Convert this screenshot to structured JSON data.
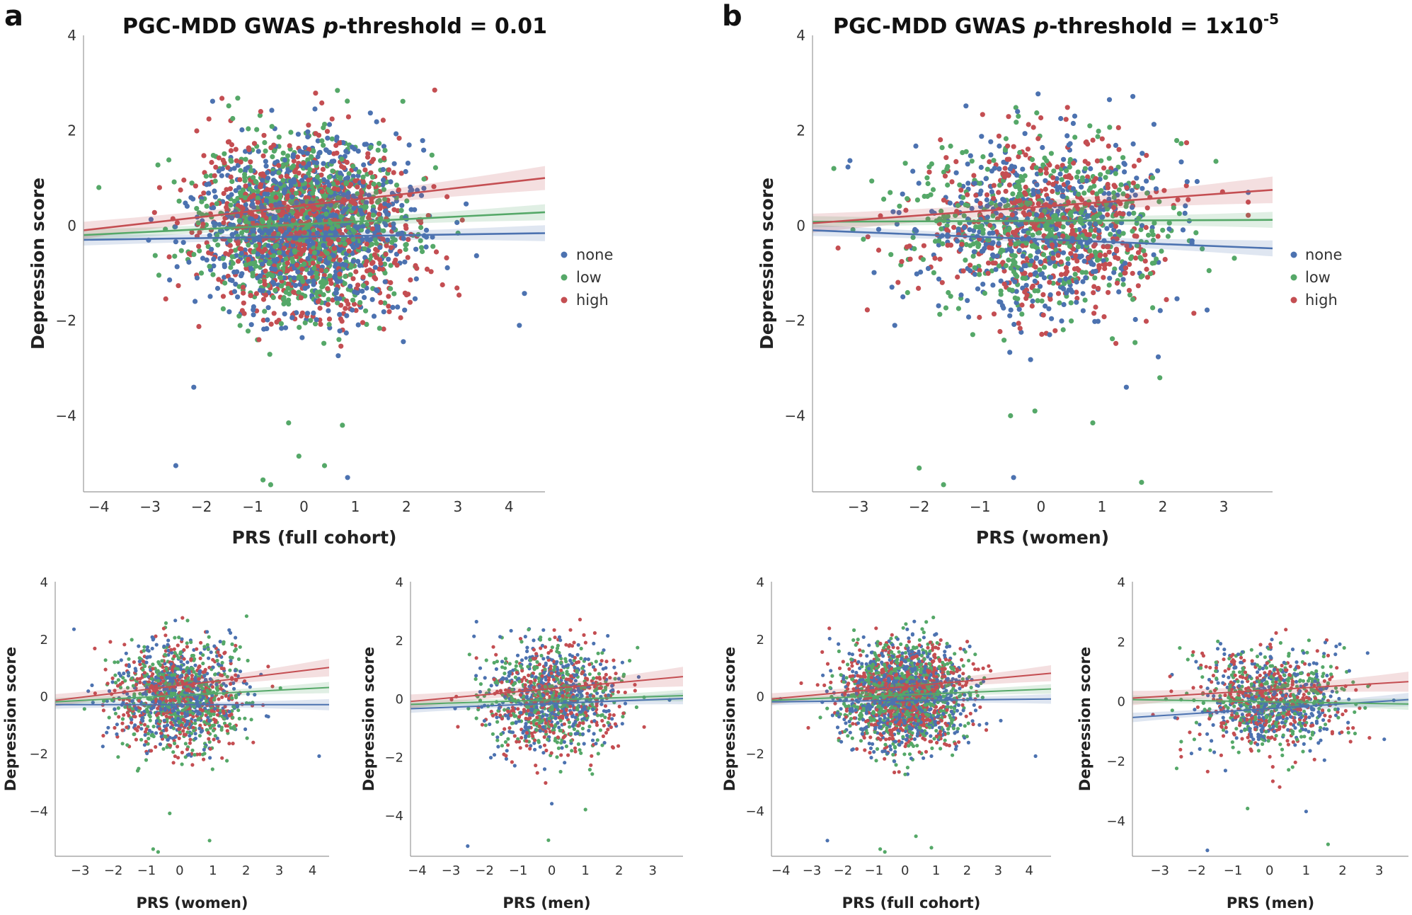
{
  "colors": {
    "none": "#4c72b0",
    "low": "#55a868",
    "high": "#c44e52"
  },
  "panel_labels": {
    "a": "a",
    "b": "b"
  },
  "titles": {
    "a": {
      "prefix": "PGC-MDD GWAS ",
      "italic": "p",
      "suffix": "-threshold = 0.01"
    },
    "b": {
      "prefix": "PGC-MDD GWAS ",
      "italic": "p",
      "suffix": "-threshold = 1x10",
      "sup": "-5"
    }
  },
  "legend": {
    "labels": [
      "none",
      "low",
      "high"
    ]
  },
  "chart_data": [
    {
      "id": "a_main",
      "type": "scatter",
      "title": "PGC-MDD GWAS p-threshold = 0.01",
      "xlabel": "PRS (full cohort)",
      "ylabel": "Depression score",
      "xlim": [
        -4.3,
        4.7
      ],
      "ylim": [
        -5.6,
        4.0
      ],
      "xticks": [
        "−4",
        "−3",
        "−2",
        "−1",
        "0",
        "1",
        "2",
        "3",
        "4"
      ],
      "xtick_values": [
        -4,
        -3,
        -2,
        -1,
        0,
        1,
        2,
        3,
        4
      ],
      "yticks": [
        "4",
        "2",
        "0",
        "−2",
        "−4"
      ],
      "ytick_values": [
        4,
        2,
        0,
        -2,
        -4
      ],
      "legend": [
        "none",
        "low",
        "high"
      ],
      "series": [
        {
          "name": "none",
          "line": [
            [
              -4.3,
              -0.3
            ],
            [
              4.7,
              -0.16
            ]
          ],
          "ci": 0.12
        },
        {
          "name": "low",
          "line": [
            [
              -4.3,
              -0.2
            ],
            [
              4.7,
              0.28
            ]
          ],
          "ci": 0.12
        },
        {
          "name": "high",
          "line": [
            [
              -4.3,
              -0.1
            ],
            [
              4.7,
              1.0
            ]
          ],
          "ci": 0.18
        }
      ],
      "point_cloud": {
        "n": 2600,
        "x_mean": 0.0,
        "x_sd": 1.0,
        "y_sd": 0.9,
        "seed": 11
      },
      "outliers": [
        {
          "series": "none",
          "x": -2.5,
          "y": -5.05
        },
        {
          "series": "none",
          "x": 0.85,
          "y": -5.3
        },
        {
          "series": "none",
          "x": 4.2,
          "y": -2.1
        },
        {
          "series": "low",
          "x": -0.8,
          "y": -5.35
        },
        {
          "series": "low",
          "x": -0.65,
          "y": -5.45
        },
        {
          "series": "low",
          "x": -0.1,
          "y": -4.85
        },
        {
          "series": "low",
          "x": 0.4,
          "y": -5.05
        },
        {
          "series": "low",
          "x": -0.3,
          "y": -4.15
        },
        {
          "series": "low",
          "x": 0.75,
          "y": -4.2
        },
        {
          "series": "none",
          "x": -2.15,
          "y": -3.4
        },
        {
          "series": "low",
          "x": -4.0,
          "y": 0.8
        },
        {
          "series": "high",
          "x": 2.55,
          "y": 2.85
        }
      ]
    },
    {
      "id": "b_main",
      "type": "scatter",
      "title": "PGC-MDD GWAS p-threshold = 1x10-5",
      "xlabel": "PRS (women)",
      "ylabel": "Depression score",
      "xlim": [
        -3.75,
        3.8
      ],
      "ylim": [
        -5.6,
        4.0
      ],
      "xticks": [
        "−3",
        "−2",
        "−1",
        "0",
        "1",
        "2",
        "3"
      ],
      "xtick_values": [
        -3,
        -2,
        -1,
        0,
        1,
        2,
        3
      ],
      "yticks": [
        "4",
        "2",
        "0",
        "−2",
        "−4"
      ],
      "ytick_values": [
        4,
        2,
        0,
        -2,
        -4
      ],
      "legend": [
        "none",
        "low",
        "high"
      ],
      "series": [
        {
          "name": "none",
          "line": [
            [
              -3.75,
              -0.1
            ],
            [
              3.8,
              -0.48
            ]
          ],
          "ci": 0.12
        },
        {
          "name": "low",
          "line": [
            [
              -3.75,
              0.08
            ],
            [
              3.8,
              0.12
            ]
          ],
          "ci": 0.12
        },
        {
          "name": "high",
          "line": [
            [
              -3.75,
              0.05
            ],
            [
              3.8,
              0.75
            ]
          ],
          "ci": 0.2
        }
      ],
      "point_cloud": {
        "n": 1500,
        "x_mean": 0.0,
        "x_sd": 1.05,
        "y_sd": 0.9,
        "seed": 23
      },
      "outliers": [
        {
          "series": "low",
          "x": -2.0,
          "y": -5.1
        },
        {
          "series": "low",
          "x": -1.6,
          "y": -5.45
        },
        {
          "series": "none",
          "x": -0.45,
          "y": -5.3
        },
        {
          "series": "low",
          "x": 1.65,
          "y": -5.4
        },
        {
          "series": "low",
          "x": -0.5,
          "y": -4.0
        },
        {
          "series": "low",
          "x": -0.1,
          "y": -3.9
        },
        {
          "series": "low",
          "x": 0.85,
          "y": -4.15
        },
        {
          "series": "none",
          "x": 1.4,
          "y": -3.4
        },
        {
          "series": "low",
          "x": -3.4,
          "y": 1.2
        },
        {
          "series": "low",
          "x": 1.95,
          "y": -3.2
        },
        {
          "series": "none",
          "x": -2.4,
          "y": -2.1
        }
      ]
    },
    {
      "id": "a_women",
      "type": "scatter",
      "xlabel": "PRS (women)",
      "ylabel": "Depression score",
      "xlim": [
        -3.75,
        4.5
      ],
      "ylim": [
        -5.6,
        4.0
      ],
      "xticks": [
        "−3",
        "−2",
        "−1",
        "0",
        "1",
        "2",
        "3",
        "4"
      ],
      "xtick_values": [
        -3,
        -2,
        -1,
        0,
        1,
        2,
        3,
        4
      ],
      "yticks": [
        "4",
        "2",
        "0",
        "−2",
        "−4"
      ],
      "ytick_values": [
        4,
        2,
        0,
        -2,
        -4
      ],
      "series": [
        {
          "name": "none",
          "line": [
            [
              -3.75,
              -0.3
            ],
            [
              4.5,
              -0.3
            ]
          ],
          "ci": 0.14
        },
        {
          "name": "low",
          "line": [
            [
              -3.75,
              -0.2
            ],
            [
              4.5,
              0.3
            ]
          ],
          "ci": 0.14
        },
        {
          "name": "high",
          "line": [
            [
              -3.75,
              -0.15
            ],
            [
              4.5,
              1.0
            ]
          ],
          "ci": 0.22
        }
      ],
      "point_cloud": {
        "n": 1400,
        "x_mean": 0.0,
        "x_sd": 0.95,
        "y_sd": 0.9,
        "seed": 31
      },
      "outliers": [
        {
          "series": "low",
          "x": -0.8,
          "y": -5.35
        },
        {
          "series": "low",
          "x": -0.65,
          "y": -5.45
        },
        {
          "series": "low",
          "x": 0.9,
          "y": -5.05
        },
        {
          "series": "none",
          "x": 4.2,
          "y": -2.1
        },
        {
          "series": "low",
          "x": -0.3,
          "y": -4.1
        }
      ]
    },
    {
      "id": "a_men",
      "type": "scatter",
      "xlabel": "PRS (men)",
      "ylabel": "Depression score",
      "xlim": [
        -4.2,
        3.9
      ],
      "ylim": [
        -5.4,
        4.0
      ],
      "xticks": [
        "−4",
        "−3",
        "−2",
        "−1",
        "0",
        "1",
        "2",
        "3"
      ],
      "xtick_values": [
        -4,
        -3,
        -2,
        -1,
        0,
        1,
        2,
        3
      ],
      "yticks": [
        "4",
        "2",
        "0",
        "−2",
        "−4"
      ],
      "ytick_values": [
        4,
        2,
        0,
        -2,
        -4
      ],
      "series": [
        {
          "name": "none",
          "line": [
            [
              -4.2,
              -0.35
            ],
            [
              3.9,
              0.0
            ]
          ],
          "ci": 0.14
        },
        {
          "name": "low",
          "line": [
            [
              -4.2,
              -0.2
            ],
            [
              3.9,
              0.1
            ]
          ],
          "ci": 0.14
        },
        {
          "name": "high",
          "line": [
            [
              -4.2,
              -0.1
            ],
            [
              3.9,
              0.75
            ]
          ],
          "ci": 0.24
        }
      ],
      "point_cloud": {
        "n": 1200,
        "x_mean": 0.0,
        "x_sd": 1.0,
        "y_sd": 0.9,
        "seed": 43
      },
      "outliers": [
        {
          "series": "none",
          "x": -2.5,
          "y": -5.05
        },
        {
          "series": "low",
          "x": -0.1,
          "y": -4.85
        },
        {
          "series": "none",
          "x": 0.0,
          "y": -3.6
        },
        {
          "series": "low",
          "x": 1.0,
          "y": -3.8
        }
      ]
    },
    {
      "id": "b_full",
      "type": "scatter",
      "xlabel": "PRS (full cohort)",
      "ylabel": "Depression score",
      "xlim": [
        -4.3,
        4.7
      ],
      "ylim": [
        -5.6,
        4.0
      ],
      "xticks": [
        "−4",
        "−3",
        "−2",
        "−1",
        "0",
        "1",
        "2",
        "3",
        "4"
      ],
      "xtick_values": [
        -4,
        -3,
        -2,
        -1,
        0,
        1,
        2,
        3,
        4
      ],
      "yticks": [
        "4",
        "2",
        "0",
        "−2",
        "−4"
      ],
      "ytick_values": [
        4,
        2,
        0,
        -2,
        -4
      ],
      "series": [
        {
          "name": "none",
          "line": [
            [
              -4.3,
              -0.2
            ],
            [
              4.7,
              -0.1
            ]
          ],
          "ci": 0.12
        },
        {
          "name": "low",
          "line": [
            [
              -4.3,
              -0.15
            ],
            [
              4.7,
              0.25
            ]
          ],
          "ci": 0.12
        },
        {
          "name": "high",
          "line": [
            [
              -4.3,
              -0.1
            ],
            [
              4.7,
              0.8
            ]
          ],
          "ci": 0.2
        }
      ],
      "point_cloud": {
        "n": 2200,
        "x_mean": 0.0,
        "x_sd": 1.0,
        "y_sd": 0.9,
        "seed": 57
      },
      "outliers": [
        {
          "series": "low",
          "x": -0.8,
          "y": -5.35
        },
        {
          "series": "low",
          "x": -0.65,
          "y": -5.45
        },
        {
          "series": "low",
          "x": 0.85,
          "y": -5.3
        },
        {
          "series": "none",
          "x": -2.5,
          "y": -5.05
        },
        {
          "series": "none",
          "x": 4.2,
          "y": -2.1
        },
        {
          "series": "low",
          "x": 0.35,
          "y": -4.9
        }
      ]
    },
    {
      "id": "b_men",
      "type": "scatter",
      "xlabel": "PRS (men)",
      "ylabel": "Depression score",
      "xlim": [
        -3.75,
        3.8
      ],
      "ylim": [
        -5.2,
        4.0
      ],
      "xticks": [
        "−3",
        "−2",
        "−1",
        "0",
        "1",
        "2",
        "3"
      ],
      "xtick_values": [
        -3,
        -2,
        -1,
        0,
        1,
        2,
        3
      ],
      "yticks": [
        "4",
        "2",
        "0",
        "−2",
        "−4"
      ],
      "ytick_values": [
        4,
        2,
        0,
        -2,
        -4
      ],
      "series": [
        {
          "name": "none",
          "line": [
            [
              -3.75,
              -0.55
            ],
            [
              3.8,
              0.05
            ]
          ],
          "ci": 0.16
        },
        {
          "name": "low",
          "line": [
            [
              -3.75,
              0.05
            ],
            [
              3.8,
              -0.1
            ]
          ],
          "ci": 0.14
        },
        {
          "name": "high",
          "line": [
            [
              -3.75,
              0.1
            ],
            [
              3.8,
              0.65
            ]
          ],
          "ci": 0.24
        }
      ],
      "point_cloud": {
        "n": 1100,
        "x_mean": 0.0,
        "x_sd": 1.0,
        "y_sd": 0.85,
        "seed": 71
      },
      "outliers": [
        {
          "series": "none",
          "x": -1.7,
          "y": -5.0
        },
        {
          "series": "low",
          "x": 1.6,
          "y": -4.8
        },
        {
          "series": "none",
          "x": 1.0,
          "y": -3.7
        },
        {
          "series": "low",
          "x": -0.6,
          "y": -3.6
        }
      ]
    }
  ]
}
